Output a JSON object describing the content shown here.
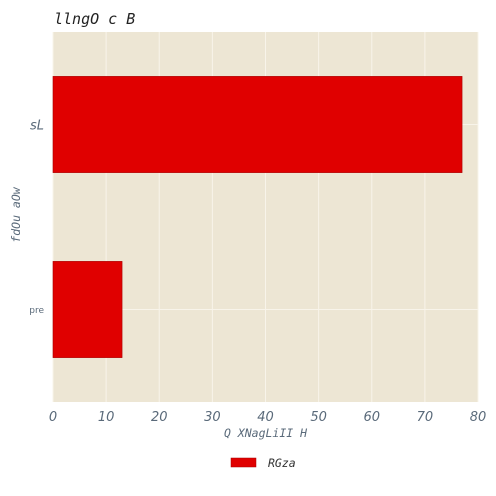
{
  "colors": {
    "plot_bg": "#ede6d4",
    "grid": "#f8f4ea",
    "bar": "#e00000",
    "bar_edge": "#a80000"
  },
  "chart_data": {
    "type": "bar",
    "orientation": "horizontal",
    "title": "llngO c B",
    "xlabel": "Q XNagLiII H",
    "ylabel": "fdOu aOw",
    "categories": [
      "sL",
      "pre"
    ],
    "series": [
      {
        "name": "RGza",
        "values": [
          77,
          13
        ]
      }
    ],
    "xlim": [
      0,
      80
    ],
    "xticks": [
      0,
      10,
      20,
      30,
      40,
      50,
      60,
      70,
      80
    ],
    "grid": true,
    "legend_position": "bottom-center"
  }
}
